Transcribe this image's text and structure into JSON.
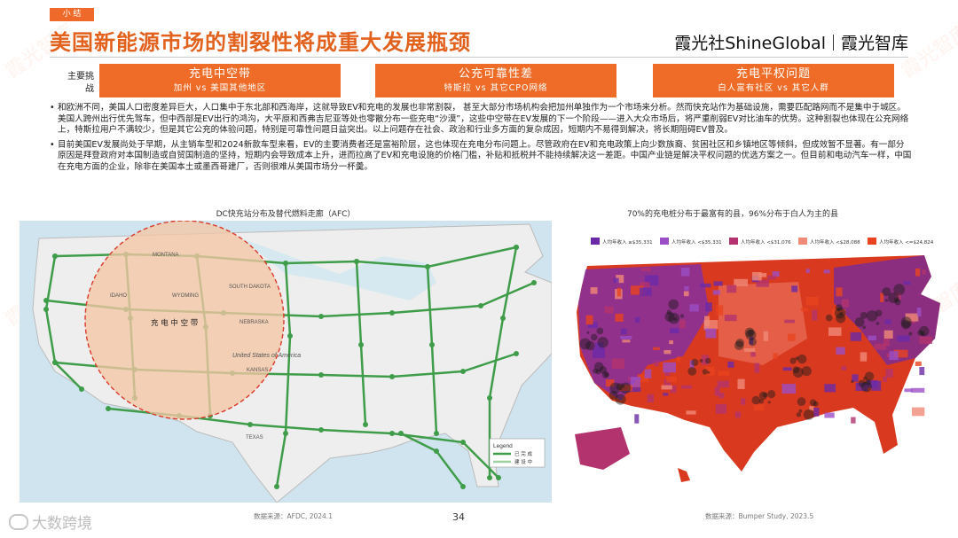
{
  "header": {
    "tag": "小 结",
    "title": "美国新能源市场的割裂性将成重大发展瓶颈",
    "logo_left": "霞光社ShineGlobal",
    "logo_right": "霞光智库"
  },
  "challenges": {
    "label": "主要挑战",
    "items": [
      {
        "title": "充电中空带",
        "subtitle": "加州 vs 美国其他地区"
      },
      {
        "title": "公充可靠性差",
        "subtitle": "特斯拉 vs 其它CPO网络"
      },
      {
        "title": "充电平权问题",
        "subtitle": "白人富有社区 vs 其它人群"
      }
    ]
  },
  "bullets": [
    "和欧洲不同，美国人口密度差异巨大，人口集中于东北部和西海岸，这就导致EV和充电的发展也非常割裂， 甚至大部分市场机构会把加州单独作为一个市场来分析。然而快充站作为基础设施，需要匹配路网而不是集中于城区。美国人跨州出行优先驾车，但中西部是EV出行的鸿沟，大平原和西弗吉尼亚等处也零散分布一些充电“沙漠”，这些中空带在EV发展的下一个阶段——进入大众市场后，将严重削弱EV对比油车的优势。这种割裂也体现在公充网络上，特斯拉用户不满较少，但是其它公充的体验问题，特别是可靠性问题日益突出。以上问题存在社会、政治和行业多方面的复杂成因，短期内不易得到解决，将长期阻碍EV普及。",
    "目前美国EV发展尚处于早期，从主销车型和2024新款车型来看，EV的主要消费者还是富裕阶层，这也体现在充电分布问题上。尽管政府在EV和充电政策上向少数族裔、贫困社区和乡镇地区等倾斜，但成效暂不显著。有一部分原因是拜登政府对本国制造或自贸国制造的坚持，短期内会导致成本上升，进而拉高了EV和充电设施的价格门槛，补贴和抵税并不能持续解决这一差距。中国产业链是解决平权问题的优选方案之一。但目前和电动汽车一样，中国在充电方面的企业，除非在美国本土或墨西哥建厂，否则很难从美国市场分一杯羹。"
  ],
  "left_chart": {
    "title": "DC快充站分布及替代燃料走廊（AFC）",
    "source": "数据来源：AFDC, 2024.1",
    "hollow_label": "充 电 中 空 带",
    "state_labels": [
      "MONTANA",
      "WYOMING",
      "SOUTH DAKOTA",
      "NEBRASKA",
      "IDAHO",
      "KANSAS",
      "TEXAS",
      "United States of America"
    ],
    "legend": {
      "title": "Legend",
      "items": [
        "已 完 成",
        "建 设 中"
      ]
    },
    "colors": {
      "road": "#3f9d4a",
      "hollow_fill": "#f3c6a5",
      "hollow_border": "#d93a2b",
      "ocean": "#cfe4ee"
    }
  },
  "right_chart": {
    "title": "70%的充电桩分布于最富有的县，96%分布于白人为主的县",
    "source": "数据来源：Bumper Study, 2023.5",
    "legend": [
      {
        "label": "人均年收入 ≥$35,331",
        "color": "#6a2aa8"
      },
      {
        "label": "人均年收入 <$35,331",
        "color": "#9b4fc6"
      },
      {
        "label": "人均年收入 <$31,076",
        "color": "#b3336e"
      },
      {
        "label": "人均年收入 <$28,088",
        "color": "#f08a78"
      },
      {
        "label": "人均年收入 <=$24,824",
        "color": "#e8431e"
      }
    ]
  },
  "footer": {
    "page": "34",
    "brand": "大数跨境",
    "watermark": "霞光智库"
  }
}
